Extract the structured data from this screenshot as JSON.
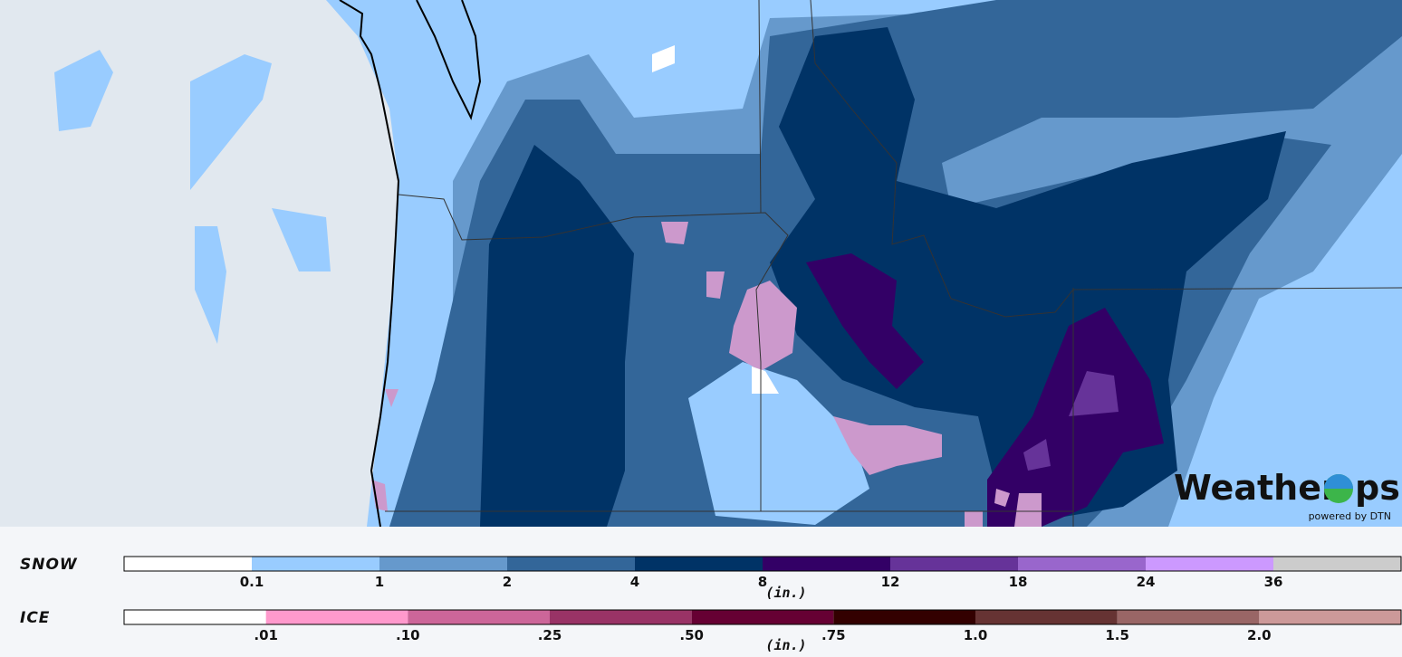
{
  "legend": {
    "snow": {
      "title": "SNOW",
      "labels": [
        "0.1",
        "1",
        "2",
        "4",
        "8",
        "12",
        "18",
        "24",
        "36"
      ],
      "unit": "(in.)",
      "colors": [
        "#ffffff",
        "#99ccff",
        "#6699cc",
        "#336699",
        "#003366",
        "#330066",
        "#663399",
        "#9966cc",
        "#cc99ff",
        "#cccccc"
      ]
    },
    "ice": {
      "title": "ICE",
      "labels": [
        ".01",
        ".10",
        ".25",
        ".50",
        ".75",
        "1.0",
        "1.5",
        "2.0"
      ],
      "unit": "(in.)",
      "colors": [
        "#ffffff",
        "#ff99cc",
        "#cc6699",
        "#993366",
        "#660033",
        "#330000",
        "#663333",
        "#996666",
        "#cc9999"
      ]
    }
  },
  "logo": {
    "brand_start": "Weather",
    "brand_end": "ps",
    "tagline": "powered by DTN"
  }
}
